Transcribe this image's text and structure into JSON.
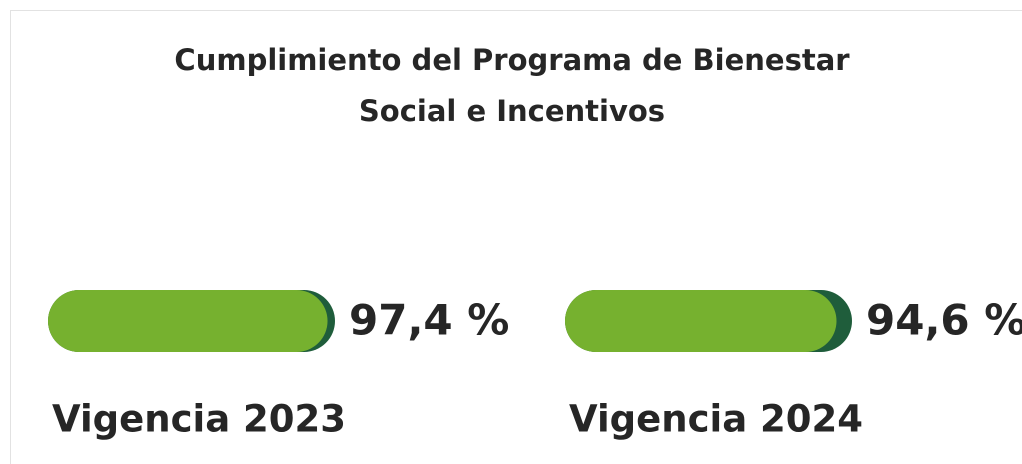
{
  "chart_data": {
    "type": "progress",
    "title": [
      "Cumplimiento del Programa de Bienestar",
      "Social e Incentivos"
    ],
    "categories": [
      "Vigencia 2023",
      "Vigencia 2024"
    ],
    "values": [
      97.4,
      94.6
    ],
    "value_labels": [
      "97,4 %",
      "94,6 %"
    ],
    "xlim": [
      0,
      100
    ],
    "color": "#76b12f",
    "track_color": "#1f5d3b"
  }
}
